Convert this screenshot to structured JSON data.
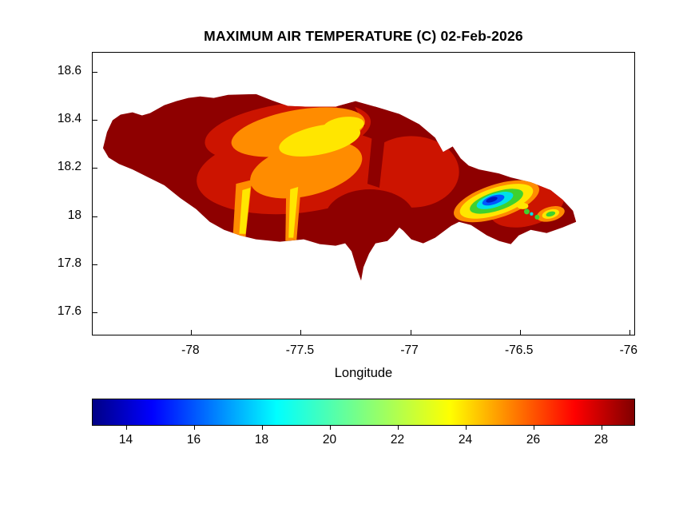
{
  "figure": {
    "background": "#ffffff",
    "text_color": "#000000"
  },
  "chart_data": {
    "type": "heatmap",
    "subtype": "filled-contour-geographic-map",
    "title": "MAXIMUM AIR TEMPERATURE (C) 02-Feb-2026",
    "xlabel": "Longitude",
    "ylabel": "",
    "region": "Jamaica (island outline)",
    "xlim": [
      -78.45,
      -75.97
    ],
    "ylim": [
      17.5,
      18.68
    ],
    "xticks": [
      -78,
      -77.5,
      -77,
      -76.5,
      -76
    ],
    "yticks": [
      17.6,
      17.8,
      18,
      18.2,
      18.4,
      18.6
    ],
    "grid": false,
    "colormap": "jet",
    "clim": [
      13,
      29
    ],
    "colormap_stops": [
      {
        "pos": 0.0,
        "color": "#000085"
      },
      {
        "pos": 0.11,
        "color": "#0000ff"
      },
      {
        "pos": 0.34,
        "color": "#00ffff"
      },
      {
        "pos": 0.66,
        "color": "#ffff00"
      },
      {
        "pos": 0.89,
        "color": "#ff0000"
      },
      {
        "pos": 1.0,
        "color": "#800000"
      }
    ],
    "colorbar": {
      "orientation": "horizontal",
      "position": "south",
      "ticks": [
        14,
        16,
        18,
        20,
        22,
        24,
        26,
        28
      ]
    },
    "units": "C",
    "field_summary": [
      {
        "area": "coasts and most of island interior",
        "tmax_c": "27-29"
      },
      {
        "area": "west-central interior uplands",
        "tmax_c": "23-26"
      },
      {
        "area": "central highland streaks toward south coast",
        "tmax_c": "21-23"
      },
      {
        "area": "eastern mountains (Blue Mountains) ring",
        "tmax_c": "17-22"
      },
      {
        "area": "eastern mountains coldest core near -76.65, 18.05",
        "tmax_c": "13-15"
      }
    ]
  }
}
